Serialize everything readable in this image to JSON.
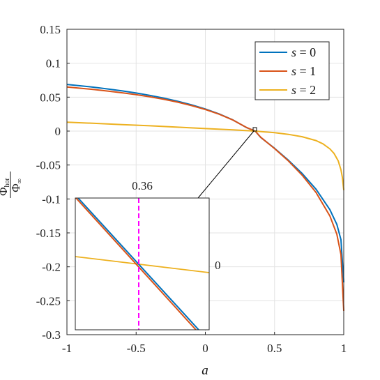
{
  "chart_data": {
    "type": "line",
    "xlabel": "a",
    "ylabel": {
      "numerator": "Φ",
      "numerator_sub": "hor",
      "denominator": "Φ",
      "denominator_sub": "∞"
    },
    "xlim": [
      -1,
      1
    ],
    "ylim": [
      -0.3,
      0.15
    ],
    "xticks": [
      "-1",
      "-0.5",
      "0",
      "0.5",
      "1"
    ],
    "yticks": [
      "0.15",
      "0.1",
      "0.05",
      "0",
      "-0.05",
      "-0.1",
      "-0.15",
      "-0.2",
      "-0.25",
      "-0.3"
    ],
    "grid": true,
    "legend_position": "top-right",
    "series": [
      {
        "name": "s = 0",
        "var": "s",
        "value": "0",
        "color": "#0072BD",
        "x": [
          -1,
          -0.9,
          -0.8,
          -0.7,
          -0.6,
          -0.5,
          -0.4,
          -0.3,
          -0.2,
          -0.1,
          0,
          0.1,
          0.2,
          0.3,
          0.36,
          0.4,
          0.5,
          0.6,
          0.7,
          0.8,
          0.9,
          0.95,
          0.98,
          1.0
        ],
        "y": [
          0.0687,
          0.0667,
          0.0645,
          0.062,
          0.0592,
          0.0561,
          0.0526,
          0.0486,
          0.044,
          0.0387,
          0.0326,
          0.0253,
          0.0163,
          0.0049,
          0.0,
          -0.0094,
          -0.0254,
          -0.0429,
          -0.0626,
          -0.0857,
          -0.1158,
          -0.1375,
          -0.16,
          -0.223
        ]
      },
      {
        "name": "s = 1",
        "var": "s",
        "value": "1",
        "color": "#D95319",
        "x": [
          -1,
          -0.9,
          -0.8,
          -0.7,
          -0.6,
          -0.5,
          -0.4,
          -0.3,
          -0.2,
          -0.1,
          0,
          0.1,
          0.2,
          0.3,
          0.36,
          0.4,
          0.5,
          0.6,
          0.7,
          0.8,
          0.9,
          0.95,
          0.98,
          1.0
        ],
        "y": [
          0.0649,
          0.0631,
          0.0611,
          0.0589,
          0.0564,
          0.0536,
          0.0504,
          0.0468,
          0.0426,
          0.0376,
          0.0318,
          0.0249,
          0.0162,
          0.005,
          0.0,
          -0.009,
          -0.0258,
          -0.044,
          -0.065,
          -0.0905,
          -0.125,
          -0.152,
          -0.182,
          -0.265
        ]
      },
      {
        "name": "s = 2",
        "var": "s",
        "value": "2",
        "color": "#EDB120",
        "x": [
          -1,
          -0.8,
          -0.6,
          -0.4,
          -0.2,
          0,
          0.2,
          0.36,
          0.5,
          0.6,
          0.7,
          0.8,
          0.85,
          0.9,
          0.93,
          0.96,
          0.98,
          0.99,
          1.0
        ],
        "y": [
          0.013,
          0.0114,
          0.0096,
          0.0078,
          0.0058,
          0.0037,
          0.0019,
          0.0,
          -0.0024,
          -0.0048,
          -0.0083,
          -0.014,
          -0.0188,
          -0.0262,
          -0.033,
          -0.044,
          -0.057,
          -0.068,
          -0.087
        ]
      }
    ],
    "inset": {
      "annotation_x": "0.36",
      "annotation_y": "0",
      "marker_color": "#FF00FF"
    }
  }
}
